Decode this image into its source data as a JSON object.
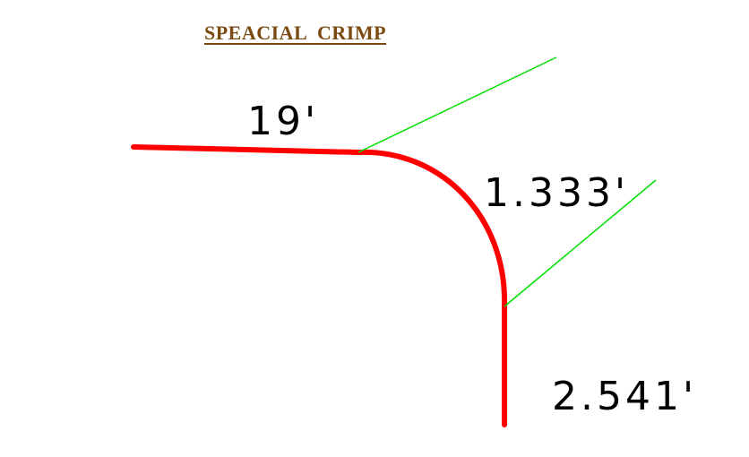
{
  "title": "SPEACIAL  CRIMP",
  "colors": {
    "title": "#7a4a10",
    "profile": "#ff0000",
    "leader": "#00e000",
    "dimension_text": "#000000",
    "background": "#ffffff"
  },
  "dimensions": {
    "top_leg": "19'",
    "arc": "1.333'",
    "vertical_leg": "2.541'"
  }
}
